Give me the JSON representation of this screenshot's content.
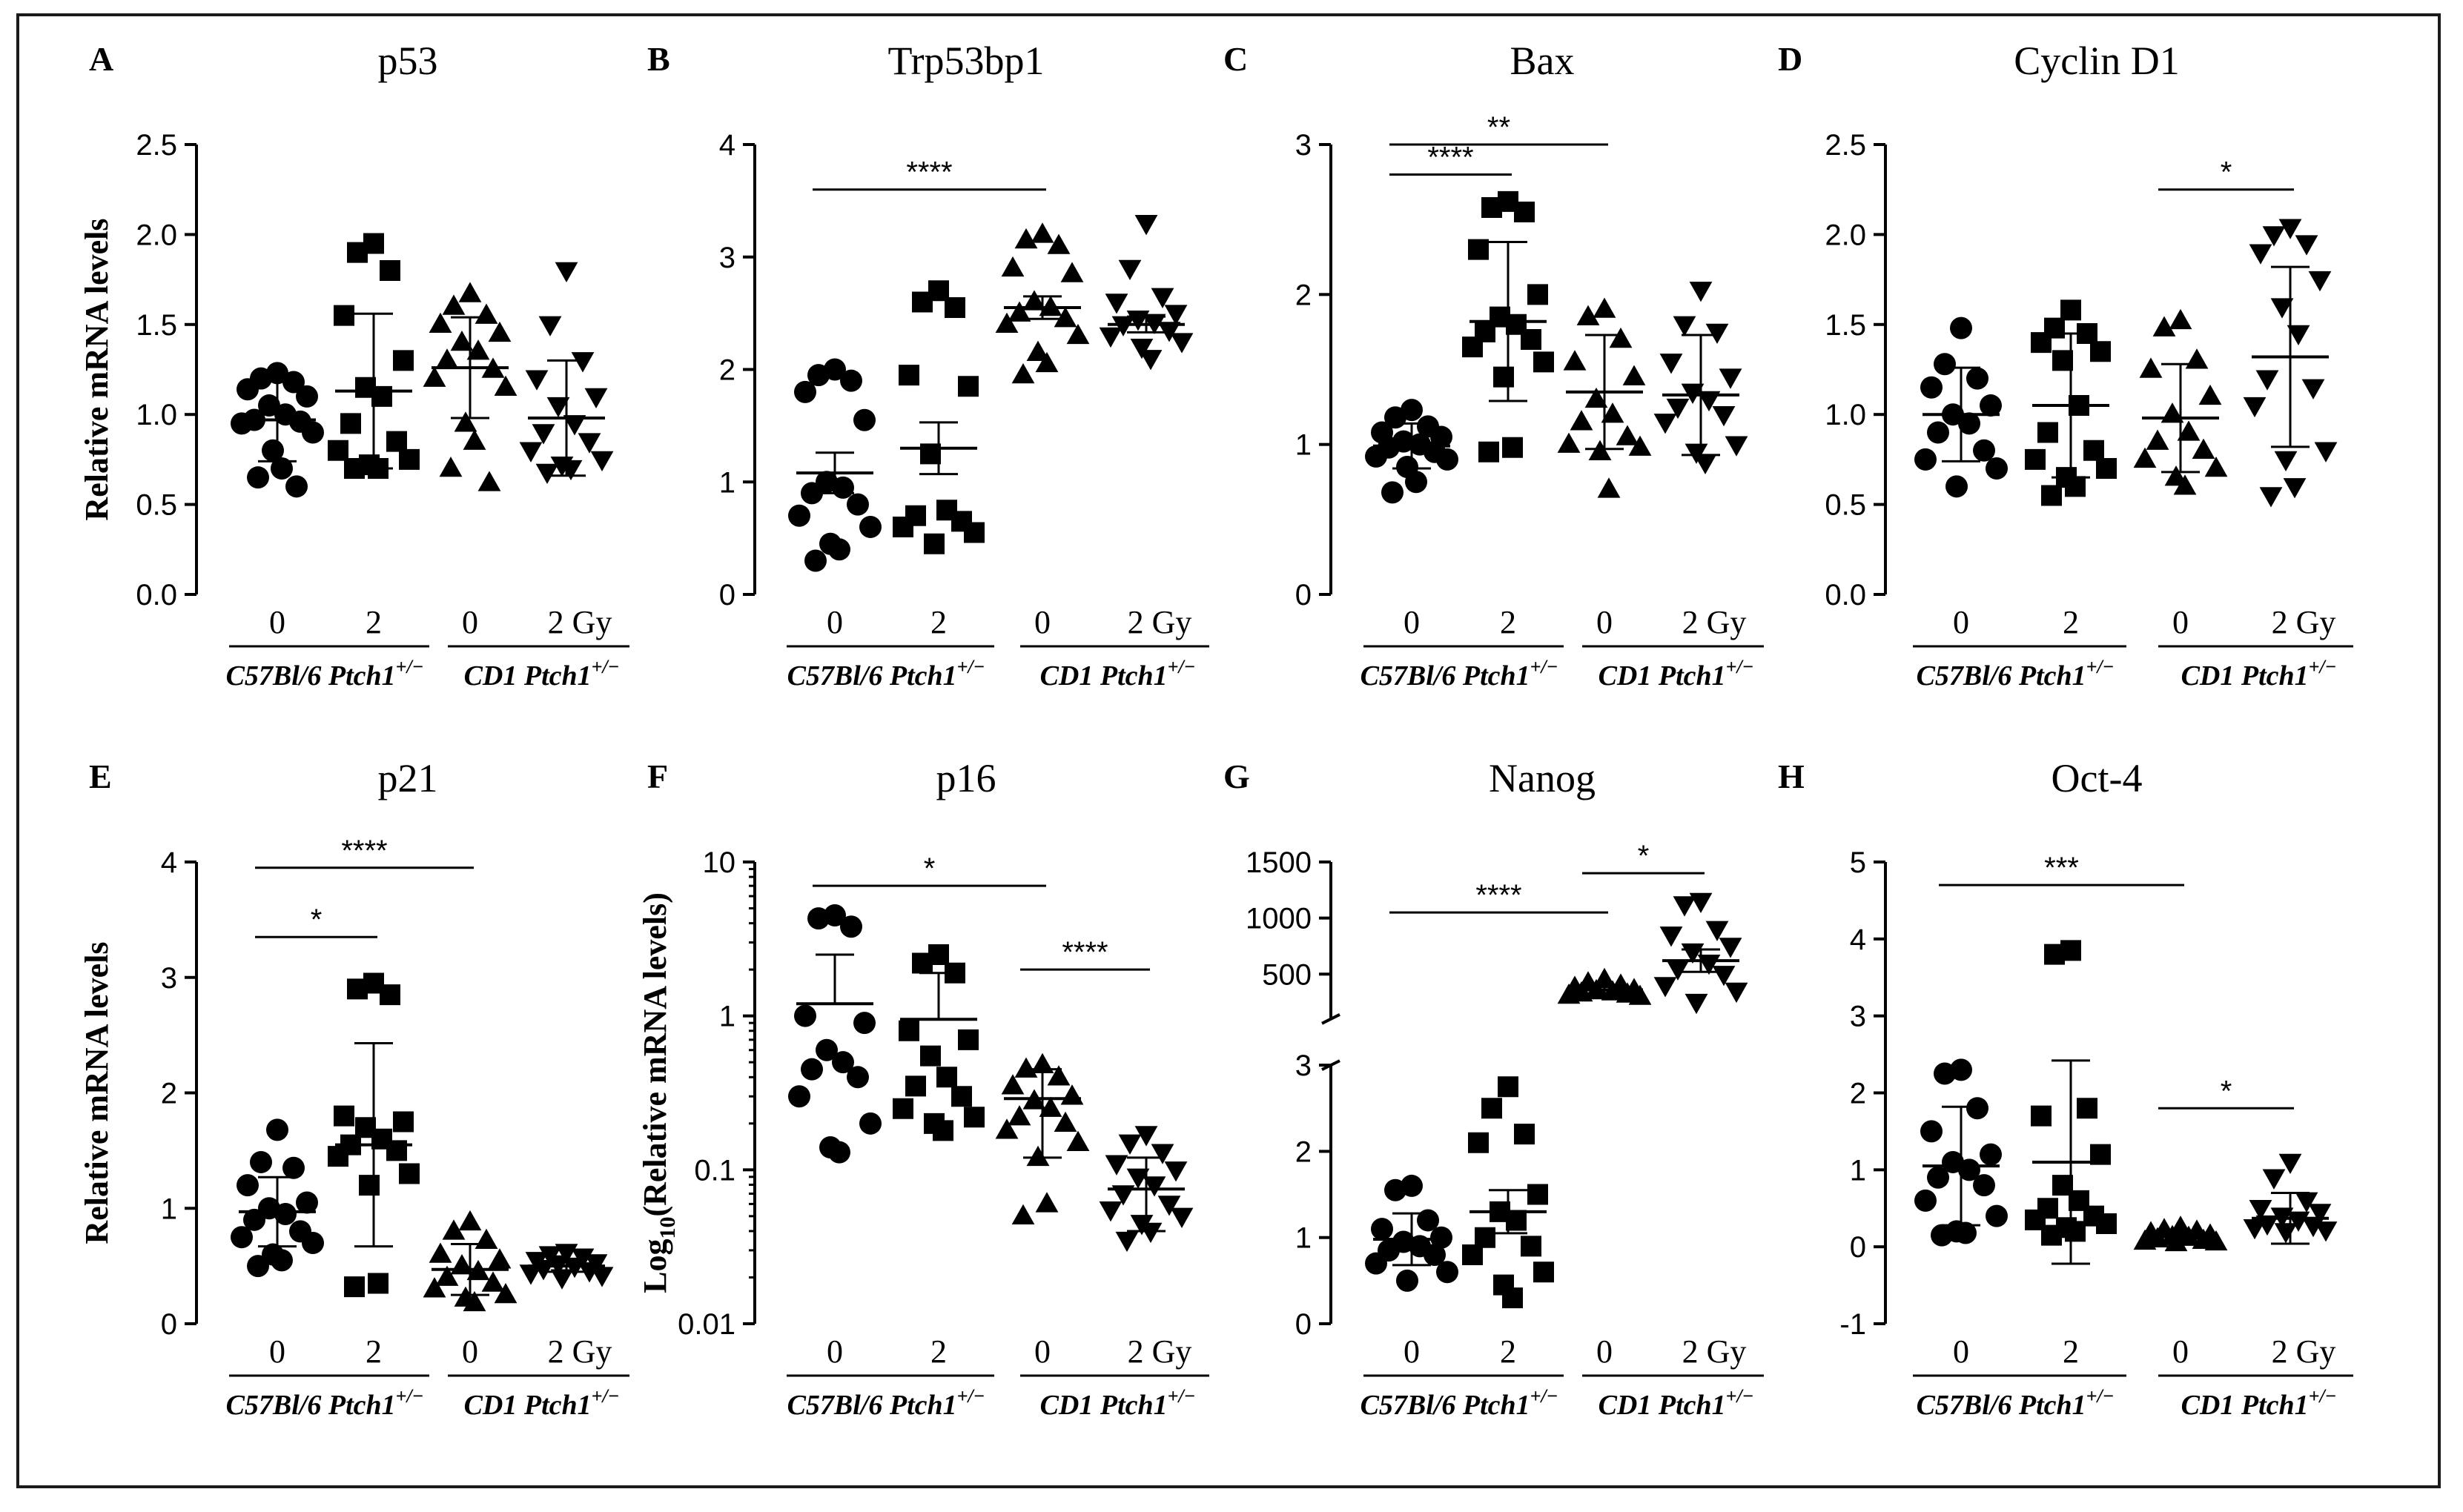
{
  "figure": {
    "group_labels": [
      "C57Bl/6 Ptch1",
      "CD1 Ptch1"
    ],
    "genotype_superscript": "+/−"
  },
  "chart_data": [
    {
      "panel": "A",
      "title": "p53",
      "type": "scatter",
      "scale": "linear",
      "ylabel": "Relative mRNA levels",
      "yticks": [
        0.0,
        0.5,
        1.0,
        1.5,
        2.0,
        2.5
      ],
      "ytick_labels": [
        "0.0",
        "0.5",
        "1.0",
        "1.5",
        "2.0",
        "2.5"
      ],
      "ylim": [
        0,
        2.5
      ],
      "x_labels": [
        "0",
        "2",
        "0",
        "2 Gy"
      ],
      "groups": [
        {
          "name": "C57Bl/6 Ptch1+/− 0 Gy",
          "marker": "circle",
          "values": [
            1.23,
            1.2,
            1.18,
            1.14,
            1.1,
            1.05,
            1.0,
            0.97,
            0.96,
            0.95,
            0.9,
            0.8,
            0.7,
            0.65,
            0.6
          ],
          "mean": 0.97,
          "sd": 0.23
        },
        {
          "name": "C57Bl/6 Ptch1+/− 2 Gy",
          "marker": "square",
          "values": [
            1.95,
            1.9,
            1.8,
            1.55,
            1.3,
            1.15,
            1.1,
            0.95,
            0.85,
            0.8,
            0.75,
            0.72,
            0.7,
            0.7
          ],
          "mean": 1.13,
          "sd": 0.43
        },
        {
          "name": "CD1 Ptch1+/− 0 Gy",
          "marker": "triangle-up",
          "values": [
            1.67,
            1.6,
            1.55,
            1.5,
            1.45,
            1.4,
            1.35,
            1.3,
            1.25,
            1.2,
            1.15,
            0.95,
            0.85,
            0.7,
            0.62
          ],
          "mean": 1.26,
          "sd": 0.28
        },
        {
          "name": "CD1 Ptch1+/− 2 Gy",
          "marker": "triangle-down",
          "values": [
            1.8,
            1.5,
            1.3,
            1.2,
            1.1,
            1.05,
            0.95,
            0.9,
            0.85,
            0.8,
            0.75,
            0.72,
            0.7,
            0.68
          ],
          "mean": 0.98,
          "sd": 0.32
        }
      ],
      "significance": []
    },
    {
      "panel": "B",
      "title": "Trp53bp1",
      "type": "scatter",
      "scale": "linear",
      "ylabel": "",
      "yticks": [
        0,
        1,
        2,
        3,
        4
      ],
      "ytick_labels": [
        "0",
        "1",
        "2",
        "3",
        "4"
      ],
      "ylim": [
        0,
        4
      ],
      "x_labels": [
        "0",
        "2",
        "0",
        "2 Gy"
      ],
      "groups": [
        {
          "name": "C57Bl/6 Ptch1+/− 0 Gy",
          "marker": "circle",
          "values": [
            2.0,
            1.95,
            1.9,
            1.8,
            1.55,
            1.0,
            0.95,
            0.9,
            0.8,
            0.7,
            0.6,
            0.45,
            0.4,
            0.3
          ],
          "mean": 1.08,
          "sd": 0.18
        },
        {
          "name": "C57Bl/6 Ptch1+/− 2 Gy",
          "marker": "square",
          "values": [
            2.7,
            2.6,
            2.55,
            1.95,
            1.85,
            1.25,
            0.75,
            0.7,
            0.65,
            0.6,
            0.55,
            0.45
          ],
          "mean": 1.3,
          "sd": 0.23
        },
        {
          "name": "CD1 Ptch1+/− 0 Gy",
          "marker": "triangle-up",
          "values": [
            3.2,
            3.15,
            3.1,
            2.9,
            2.85,
            2.6,
            2.55,
            2.5,
            2.45,
            2.4,
            2.3,
            2.15,
            2.05,
            1.95
          ],
          "mean": 2.55,
          "sd": 0.1
        },
        {
          "name": "CD1 Ptch1+/− 2 Gy",
          "marker": "triangle-down",
          "values": [
            3.3,
            2.9,
            2.65,
            2.6,
            2.5,
            2.45,
            2.42,
            2.4,
            2.35,
            2.3,
            2.25,
            2.2,
            2.1
          ],
          "mean": 2.4,
          "sd": 0.07
        }
      ],
      "significance": [
        {
          "from": 0,
          "to": 2,
          "label": "****",
          "y": 3.6
        }
      ]
    },
    {
      "panel": "C",
      "title": "Bax",
      "type": "scatter",
      "scale": "linear",
      "ylabel": "",
      "yticks": [
        0,
        1,
        2,
        3
      ],
      "ytick_labels": [
        "0",
        "1",
        "2",
        "3"
      ],
      "ylim": [
        0,
        3
      ],
      "x_labels": [
        "0",
        "2",
        "0",
        "2 Gy"
      ],
      "groups": [
        {
          "name": "C57Bl/6 Ptch1+/− 0 Gy",
          "marker": "circle",
          "values": [
            1.23,
            1.18,
            1.12,
            1.08,
            1.05,
            1.02,
            1.0,
            0.98,
            0.95,
            0.92,
            0.9,
            0.85,
            0.75,
            0.68
          ],
          "mean": 0.99,
          "sd": 0.15
        },
        {
          "name": "C57Bl/6 Ptch1+/− 2 Gy",
          "marker": "square",
          "values": [
            2.62,
            2.58,
            2.55,
            2.3,
            2.0,
            1.85,
            1.8,
            1.75,
            1.7,
            1.65,
            1.55,
            1.45,
            0.98,
            0.95
          ],
          "mean": 1.82,
          "sd": 0.53
        },
        {
          "name": "CD1 Ptch1+/− 0 Gy",
          "marker": "triangle-up",
          "values": [
            1.9,
            1.85,
            1.7,
            1.55,
            1.45,
            1.3,
            1.2,
            1.15,
            1.05,
            1.0,
            0.98,
            0.95,
            0.7
          ],
          "mean": 1.35,
          "sd": 0.38
        },
        {
          "name": "CD1 Ptch1+/− 2 Gy",
          "marker": "triangle-down",
          "values": [
            2.03,
            1.8,
            1.75,
            1.55,
            1.45,
            1.35,
            1.3,
            1.25,
            1.2,
            1.15,
            1.0,
            0.95,
            0.88
          ],
          "mean": 1.33,
          "sd": 0.4
        }
      ],
      "significance": [
        {
          "from": 0,
          "to": 2,
          "label": "**",
          "y": 3.0
        },
        {
          "from": 0,
          "to": 1,
          "label": "****",
          "y": 2.8
        }
      ]
    },
    {
      "panel": "D",
      "title": "Cyclin D1",
      "type": "scatter",
      "scale": "linear",
      "ylabel": "",
      "yticks": [
        0.0,
        0.5,
        1.0,
        1.5,
        2.0,
        2.5
      ],
      "ytick_labels": [
        "0.0",
        "0.5",
        "1.0",
        "1.5",
        "2.0",
        "2.5"
      ],
      "ylim": [
        0,
        2.5
      ],
      "x_labels": [
        "0",
        "2",
        "0",
        "2 Gy"
      ],
      "groups": [
        {
          "name": "C57Bl/6 Ptch1+/− 0 Gy",
          "marker": "circle",
          "values": [
            1.48,
            1.28,
            1.2,
            1.15,
            1.05,
            1.0,
            0.95,
            0.9,
            0.8,
            0.75,
            0.7,
            0.6
          ],
          "mean": 1.0,
          "sd": 0.26
        },
        {
          "name": "C57Bl/6 Ptch1+/− 2 Gy",
          "marker": "square",
          "values": [
            1.58,
            1.48,
            1.45,
            1.4,
            1.35,
            1.3,
            1.05,
            0.9,
            0.8,
            0.75,
            0.7,
            0.65,
            0.6,
            0.55
          ],
          "mean": 1.05,
          "sd": 0.4
        },
        {
          "name": "CD1 Ptch1+/− 0 Gy",
          "marker": "triangle-up",
          "values": [
            1.52,
            1.48,
            1.3,
            1.25,
            1.1,
            1.0,
            0.9,
            0.85,
            0.8,
            0.75,
            0.7,
            0.65,
            0.6
          ],
          "mean": 0.98,
          "sd": 0.3
        },
        {
          "name": "CD1 Ptch1+/− 2 Gy",
          "marker": "triangle-down",
          "values": [
            2.04,
            2.0,
            1.95,
            1.9,
            1.75,
            1.6,
            1.45,
            1.2,
            1.15,
            1.05,
            0.8,
            0.75,
            0.6,
            0.55
          ],
          "mean": 1.32,
          "sd": 0.5
        }
      ],
      "significance": [
        {
          "from": 2,
          "to": 3,
          "label": "*",
          "y": 2.25
        }
      ]
    },
    {
      "panel": "E",
      "title": "p21",
      "type": "scatter",
      "scale": "linear",
      "ylabel": "Relative mRNA levels",
      "yticks": [
        0,
        1,
        2,
        3,
        4
      ],
      "ytick_labels": [
        "0",
        "1",
        "2",
        "3",
        "4"
      ],
      "ylim": [
        0,
        4
      ],
      "x_labels": [
        "0",
        "2",
        "0",
        "2 Gy"
      ],
      "groups": [
        {
          "name": "C57Bl/6 Ptch1+/− 0 Gy",
          "marker": "circle",
          "values": [
            1.68,
            1.4,
            1.35,
            1.2,
            1.05,
            1.0,
            0.95,
            0.9,
            0.8,
            0.75,
            0.7,
            0.6,
            0.55,
            0.5
          ],
          "mean": 0.97,
          "sd": 0.3
        },
        {
          "name": "C57Bl/6 Ptch1+/− 2 Gy",
          "marker": "square",
          "values": [
            2.95,
            2.9,
            2.85,
            1.8,
            1.75,
            1.7,
            1.6,
            1.55,
            1.5,
            1.45,
            1.3,
            1.2,
            0.35,
            0.32
          ],
          "mean": 1.55,
          "sd": 0.88
        },
        {
          "name": "CD1 Ptch1+/− 0 Gy",
          "marker": "triangle-up",
          "values": [
            0.88,
            0.8,
            0.72,
            0.6,
            0.55,
            0.5,
            0.45,
            0.4,
            0.35,
            0.3,
            0.25,
            0.22,
            0.18
          ],
          "mean": 0.47,
          "sd": 0.22
        },
        {
          "name": "CD1 Ptch1+/− 2 Gy",
          "marker": "triangle-down",
          "values": [
            0.62,
            0.6,
            0.58,
            0.55,
            0.53,
            0.52,
            0.5,
            0.48,
            0.46,
            0.44,
            0.42,
            0.4
          ],
          "mean": 0.5,
          "sd": 0.05
        }
      ],
      "significance": [
        {
          "from": 0,
          "to": 2,
          "label": "****",
          "y": 3.95
        },
        {
          "from": 0,
          "to": 1,
          "label": "*",
          "y": 3.35
        }
      ]
    },
    {
      "panel": "F",
      "title": "p16",
      "type": "scatter",
      "scale": "log",
      "ylabel": "Log10(Relative mRNA levels)",
      "yticks": [
        0.01,
        0.1,
        1,
        10
      ],
      "ytick_labels": [
        "0.01",
        "0.1",
        "1",
        "10"
      ],
      "ylim": [
        0.01,
        10
      ],
      "x_labels": [
        "0",
        "2",
        "0",
        "2 Gy"
      ],
      "groups": [
        {
          "name": "C57Bl/6 Ptch1+/− 0 Gy",
          "marker": "circle",
          "values": [
            4.5,
            4.3,
            3.8,
            1.0,
            0.9,
            0.6,
            0.5,
            0.45,
            0.4,
            0.3,
            0.2,
            0.14,
            0.13
          ],
          "mean": 1.2,
          "sd_upper": 2.5
        },
        {
          "name": "C57Bl/6 Ptch1+/− 2 Gy",
          "marker": "square",
          "values": [
            2.5,
            2.2,
            1.9,
            0.8,
            0.7,
            0.55,
            0.4,
            0.35,
            0.3,
            0.25,
            0.22,
            0.2,
            0.18
          ],
          "mean": 0.95,
          "sd_upper": 1.9
        },
        {
          "name": "CD1 Ptch1+/− 0 Gy",
          "marker": "triangle-up",
          "values": [
            0.48,
            0.45,
            0.4,
            0.35,
            0.3,
            0.28,
            0.25,
            0.22,
            0.2,
            0.18,
            0.15,
            0.12,
            0.06,
            0.05
          ],
          "mean": 0.29,
          "sd_upper": 0.45,
          "sd_lower": 0.12
        },
        {
          "name": "CD1 Ptch1+/− 2 Gy",
          "marker": "triangle-down",
          "values": [
            0.17,
            0.15,
            0.13,
            0.11,
            0.1,
            0.09,
            0.08,
            0.07,
            0.06,
            0.055,
            0.05,
            0.045,
            0.04,
            0.035
          ],
          "mean": 0.075,
          "sd_upper": 0.12,
          "sd_lower": 0.04
        }
      ],
      "significance": [
        {
          "from": 0,
          "to": 2,
          "label": "*",
          "y": 7.0
        },
        {
          "from": 2,
          "to": 3,
          "label": "****",
          "y": 2.0
        }
      ]
    },
    {
      "panel": "G",
      "title": "Nanog",
      "type": "scatter",
      "scale": "broken-linear",
      "ylabel": "",
      "yticks_lower": [
        0,
        1,
        2,
        3
      ],
      "ytick_labels_lower": [
        "0",
        "1",
        "2",
        "3"
      ],
      "yticks_upper": [
        500,
        1000,
        1500
      ],
      "ytick_labels_upper": [
        "500",
        "1000",
        "1500"
      ],
      "ylim_lower": [
        0,
        3
      ],
      "ylim_upper": [
        100,
        1500
      ],
      "x_labels": [
        "0",
        "2",
        "0",
        "2 Gy"
      ],
      "groups": [
        {
          "name": "C57Bl/6 Ptch1+/− 0 Gy",
          "marker": "circle",
          "values": [
            1.6,
            1.55,
            1.2,
            1.1,
            1.0,
            0.95,
            0.9,
            0.85,
            0.8,
            0.7,
            0.6,
            0.5
          ],
          "mean": 0.98,
          "sd": 0.3
        },
        {
          "name": "C57Bl/6 Ptch1+/− 2 Gy",
          "marker": "square",
          "values": [
            2.75,
            2.5,
            2.2,
            2.1,
            1.5,
            1.3,
            1.2,
            1.0,
            0.9,
            0.8,
            0.6,
            0.45,
            0.3
          ],
          "mean": 1.3,
          "sd": 0.25
        },
        {
          "name": "CD1 Ptch1+/− 0 Gy",
          "marker": "triangle-up",
          "values": [
            450,
            420,
            400,
            380,
            360,
            350,
            340,
            330,
            320,
            310,
            300
          ],
          "mean": 360,
          "sd": 30
        },
        {
          "name": "CD1 Ptch1+/− 2 Gy",
          "marker": "triangle-down",
          "values": [
            1150,
            1120,
            900,
            850,
            750,
            700,
            600,
            550,
            500,
            400,
            350,
            250
          ],
          "mean": 620,
          "sd": 100
        }
      ],
      "significance": [
        {
          "from": 0,
          "to": 2,
          "label": "****",
          "y": 1050
        },
        {
          "from": 2,
          "to": 3,
          "label": "*",
          "y": 1400
        }
      ]
    },
    {
      "panel": "H",
      "title": "Oct-4",
      "type": "scatter",
      "scale": "linear",
      "ylabel": "",
      "yticks": [
        -1,
        0,
        1,
        2,
        3,
        4,
        5
      ],
      "ytick_labels": [
        "-1",
        "0",
        "1",
        "2",
        "3",
        "4",
        "5"
      ],
      "ylim": [
        -1,
        5
      ],
      "x_labels": [
        "0",
        "2",
        "0",
        "2 Gy"
      ],
      "groups": [
        {
          "name": "C57Bl/6 Ptch1+/− 0 Gy",
          "marker": "circle",
          "values": [
            2.3,
            2.25,
            1.8,
            1.5,
            1.2,
            1.1,
            1.0,
            0.9,
            0.8,
            0.6,
            0.4,
            0.2,
            0.18,
            0.15
          ],
          "mean": 1.05,
          "sd": 0.77
        },
        {
          "name": "C57Bl/6 Ptch1+/− 2 Gy",
          "marker": "square",
          "values": [
            3.85,
            3.8,
            1.8,
            1.7,
            1.2,
            0.8,
            0.6,
            0.5,
            0.4,
            0.35,
            0.3,
            0.25,
            0.2,
            0.15
          ],
          "mean": 1.1,
          "sd": 1.32
        },
        {
          "name": "CD1 Ptch1+/− 0 Gy",
          "marker": "triangle-up",
          "values": [
            0.25,
            0.22,
            0.2,
            0.18,
            0.15,
            0.13,
            0.12,
            0.1,
            0.08,
            0.07,
            0.06,
            0.05
          ],
          "mean": 0.13,
          "sd": 0.07
        },
        {
          "name": "CD1 Ptch1+/− 2 Gy",
          "marker": "triangle-down",
          "values": [
            1.1,
            0.9,
            0.6,
            0.5,
            0.45,
            0.4,
            0.35,
            0.3,
            0.28,
            0.25,
            0.22,
            0.2
          ],
          "mean": 0.37,
          "sd": 0.33
        }
      ],
      "significance": [
        {
          "from": 0,
          "to": 2,
          "label": "***",
          "y": 4.7
        },
        {
          "from": 2,
          "to": 3,
          "label": "*",
          "y": 1.8
        }
      ]
    }
  ]
}
